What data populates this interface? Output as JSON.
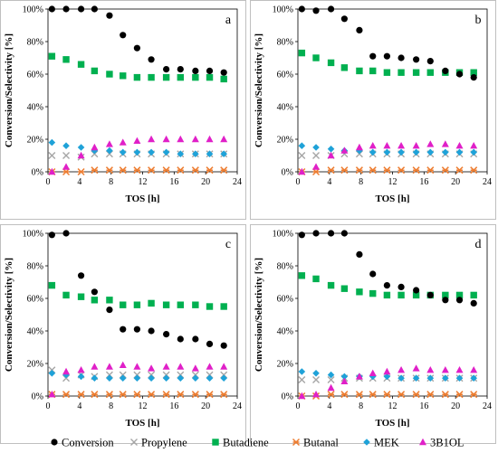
{
  "chart_data": [
    {
      "type": "scatter",
      "panel_label": "a",
      "xlabel": "TOS [h]",
      "ylabel": "Conversion/Selectivity [%]",
      "xlim": [
        0,
        24
      ],
      "ylim": [
        0,
        100
      ],
      "xticks": [
        "0",
        "4",
        "8",
        "12",
        "16",
        "20",
        "24"
      ],
      "yticks": [
        "0%",
        "20%",
        "40%",
        "60%",
        "80%",
        "100%"
      ],
      "series": [
        {
          "name": "Conversion",
          "x": [
            0.5,
            2.3,
            4.2,
            5.9,
            7.8,
            9.5,
            11.3,
            13.1,
            15.0,
            16.8,
            18.7,
            20.5,
            22.3
          ],
          "y": [
            100,
            100,
            100,
            100,
            96,
            84,
            76,
            69,
            63,
            63,
            62,
            62,
            61
          ]
        },
        {
          "name": "Propylene",
          "x": [
            0.5,
            2.3,
            4.2,
            5.9,
            7.8,
            9.5,
            11.3,
            13.1,
            15.0,
            16.8,
            18.7,
            20.5,
            22.3
          ],
          "y": [
            10,
            10,
            9,
            11,
            11,
            11,
            11,
            11,
            11,
            11,
            11,
            11,
            11
          ]
        },
        {
          "name": "Butadiene",
          "x": [
            0.5,
            2.3,
            4.2,
            5.9,
            7.8,
            9.5,
            11.3,
            13.1,
            15.0,
            16.8,
            18.7,
            20.5,
            22.3
          ],
          "y": [
            71,
            69,
            66,
            62,
            60,
            59,
            58,
            58,
            58,
            58,
            58,
            58,
            57
          ]
        },
        {
          "name": "Butanal",
          "x": [
            0.5,
            2.3,
            4.2,
            5.9,
            7.8,
            9.5,
            11.3,
            13.1,
            15.0,
            16.8,
            18.7,
            20.5,
            22.3
          ],
          "y": [
            0,
            0,
            0,
            1,
            1,
            1,
            1,
            1,
            1,
            1,
            1,
            1,
            1
          ]
        },
        {
          "name": "MEK",
          "x": [
            0.5,
            2.3,
            4.2,
            5.9,
            7.8,
            9.5,
            11.3,
            13.1,
            15.0,
            16.8,
            18.7,
            20.5,
            22.3
          ],
          "y": [
            18,
            16,
            15,
            13,
            13,
            12,
            12,
            12,
            12,
            11,
            11,
            11,
            11
          ]
        },
        {
          "name": "3B1OL",
          "x": [
            0.5,
            2.3,
            4.2,
            5.9,
            7.8,
            9.5,
            11.3,
            13.1,
            15.0,
            16.8,
            18.7,
            20.5,
            22.3
          ],
          "y": [
            0,
            3,
            10,
            15,
            17,
            18,
            19,
            20,
            20,
            20,
            20,
            20,
            20
          ]
        }
      ]
    },
    {
      "type": "scatter",
      "panel_label": "b",
      "xlabel": "TOS [h]",
      "ylabel": "Conversion/Selectivity [%]",
      "xlim": [
        0,
        24
      ],
      "ylim": [
        0,
        100
      ],
      "xticks": [
        "0",
        "4",
        "8",
        "12",
        "16",
        "20",
        "24"
      ],
      "yticks": [
        "0%",
        "20%",
        "40%",
        "60%",
        "80%",
        "100%"
      ],
      "series": [
        {
          "name": "Conversion",
          "x": [
            0.5,
            2.3,
            4.2,
            5.9,
            7.8,
            9.5,
            11.3,
            13.1,
            15.0,
            16.8,
            18.7,
            20.5,
            22.3
          ],
          "y": [
            100,
            99,
            100,
            94,
            87,
            71,
            71,
            70,
            69,
            68,
            62,
            60,
            58
          ]
        },
        {
          "name": "Propylene",
          "x": [
            0.5,
            2.3,
            4.2,
            5.9,
            7.8,
            9.5,
            11.3,
            13.1,
            15.0,
            16.8,
            18.7,
            20.5,
            22.3
          ],
          "y": [
            10,
            10,
            10,
            11,
            11,
            11,
            11,
            11,
            11,
            11,
            11,
            11,
            11
          ]
        },
        {
          "name": "Butadiene",
          "x": [
            0.5,
            2.3,
            4.2,
            5.9,
            7.8,
            9.5,
            11.3,
            13.1,
            15.0,
            16.8,
            18.7,
            20.5,
            22.3
          ],
          "y": [
            73,
            70,
            67,
            64,
            62,
            62,
            61,
            61,
            61,
            61,
            61,
            61,
            61
          ]
        },
        {
          "name": "Butanal",
          "x": [
            0.5,
            2.3,
            4.2,
            5.9,
            7.8,
            9.5,
            11.3,
            13.1,
            15.0,
            16.8,
            18.7,
            20.5,
            22.3
          ],
          "y": [
            0,
            0,
            1,
            1,
            1,
            1,
            1,
            1,
            1,
            1,
            1,
            1,
            1
          ]
        },
        {
          "name": "MEK",
          "x": [
            0.5,
            2.3,
            4.2,
            5.9,
            7.8,
            9.5,
            11.3,
            13.1,
            15.0,
            16.8,
            18.7,
            20.5,
            22.3
          ],
          "y": [
            16,
            15,
            14,
            13,
            13,
            12,
            12,
            12,
            12,
            12,
            12,
            12,
            12
          ]
        },
        {
          "name": "3B1OL",
          "x": [
            0.5,
            2.3,
            4.2,
            5.9,
            7.8,
            9.5,
            11.3,
            13.1,
            15.0,
            16.8,
            18.7,
            20.5,
            22.3
          ],
          "y": [
            0,
            3,
            10,
            13,
            15,
            16,
            16,
            16,
            16,
            17,
            17,
            16,
            16
          ]
        }
      ]
    },
    {
      "type": "scatter",
      "panel_label": "c",
      "xlabel": "TOS [h]",
      "ylabel": "Conversion/Selectivity [%]",
      "xlim": [
        0,
        24
      ],
      "ylim": [
        0,
        100
      ],
      "xticks": [
        "0",
        "4",
        "8",
        "12",
        "16",
        "20",
        "24"
      ],
      "yticks": [
        "0%",
        "20%",
        "40%",
        "60%",
        "80%",
        "100%"
      ],
      "series": [
        {
          "name": "Conversion",
          "x": [
            0.5,
            2.3,
            4.2,
            5.9,
            7.8,
            9.5,
            11.3,
            13.1,
            15.0,
            16.8,
            18.7,
            20.5,
            22.3
          ],
          "y": [
            99,
            100,
            74,
            64,
            53,
            41,
            41,
            40,
            38,
            35,
            35,
            32,
            31
          ]
        },
        {
          "name": "Propylene",
          "x": [
            0.5,
            2.3,
            4.2,
            5.9,
            7.8,
            9.5,
            11.3,
            13.1,
            15.0,
            16.8,
            18.7,
            20.5,
            22.3
          ],
          "y": [
            16,
            11,
            13,
            12,
            13,
            13,
            13,
            13,
            13,
            13,
            13,
            13,
            13
          ]
        },
        {
          "name": "Butadiene",
          "x": [
            0.5,
            2.3,
            4.2,
            5.9,
            7.8,
            9.5,
            11.3,
            13.1,
            15.0,
            16.8,
            18.7,
            20.5,
            22.3
          ],
          "y": [
            68,
            62,
            61,
            59,
            59,
            56,
            56,
            57,
            56,
            56,
            56,
            55,
            55
          ]
        },
        {
          "name": "Butanal",
          "x": [
            0.5,
            2.3,
            4.2,
            5.9,
            7.8,
            9.5,
            11.3,
            13.1,
            15.0,
            16.8,
            18.7,
            20.5,
            22.3
          ],
          "y": [
            1,
            1,
            1,
            1,
            1,
            1,
            1,
            1,
            1,
            1,
            1,
            1,
            1
          ]
        },
        {
          "name": "MEK",
          "x": [
            0.5,
            2.3,
            4.2,
            5.9,
            7.8,
            9.5,
            11.3,
            13.1,
            15.0,
            16.8,
            18.7,
            20.5,
            22.3
          ],
          "y": [
            14,
            13,
            12,
            11,
            11,
            11,
            11,
            11,
            11,
            11,
            11,
            11,
            11
          ]
        },
        {
          "name": "3B1OL",
          "x": [
            0.5,
            2.3,
            4.2,
            5.9,
            7.8,
            9.5,
            11.3,
            13.1,
            15.0,
            16.8,
            18.7,
            20.5,
            22.3
          ],
          "y": [
            1,
            15,
            16,
            18,
            18,
            19,
            18,
            17,
            18,
            18,
            17,
            18,
            18
          ]
        }
      ]
    },
    {
      "type": "scatter",
      "panel_label": "d",
      "xlabel": "TOS [h]",
      "ylabel": "Conversion/Selectivity [%]",
      "xlim": [
        0,
        24
      ],
      "ylim": [
        0,
        100
      ],
      "xticks": [
        "0",
        "4",
        "8",
        "12",
        "16",
        "20",
        "24"
      ],
      "yticks": [
        "0%",
        "20%",
        "40%",
        "60%",
        "80%",
        "100%"
      ],
      "series": [
        {
          "name": "Conversion",
          "x": [
            0.5,
            2.3,
            4.2,
            5.9,
            7.8,
            9.5,
            11.3,
            13.1,
            15.0,
            16.8,
            18.7,
            20.5,
            22.3
          ],
          "y": [
            99,
            100,
            100,
            100,
            87,
            75,
            68,
            67,
            65,
            62,
            59,
            59,
            57
          ]
        },
        {
          "name": "Propylene",
          "x": [
            0.5,
            2.3,
            4.2,
            5.9,
            7.8,
            9.5,
            11.3,
            13.1,
            15.0,
            16.8,
            18.7,
            20.5,
            22.3
          ],
          "y": [
            10,
            10,
            10,
            11,
            11,
            11,
            11,
            11,
            11,
            11,
            11,
            11,
            11
          ]
        },
        {
          "name": "Butadiene",
          "x": [
            0.5,
            2.3,
            4.2,
            5.9,
            7.8,
            9.5,
            11.3,
            13.1,
            15.0,
            16.8,
            18.7,
            20.5,
            22.3
          ],
          "y": [
            74,
            72,
            68,
            66,
            64,
            63,
            62,
            62,
            62,
            62,
            62,
            62,
            62
          ]
        },
        {
          "name": "Butanal",
          "x": [
            0.5,
            2.3,
            4.2,
            5.9,
            7.8,
            9.5,
            11.3,
            13.1,
            15.0,
            16.8,
            18.7,
            20.5,
            22.3
          ],
          "y": [
            0,
            0,
            1,
            1,
            1,
            1,
            1,
            1,
            1,
            1,
            1,
            1,
            1
          ]
        },
        {
          "name": "MEK",
          "x": [
            0.5,
            2.3,
            4.2,
            5.9,
            7.8,
            9.5,
            11.3,
            13.1,
            15.0,
            16.8,
            18.7,
            20.5,
            22.3
          ],
          "y": [
            15,
            14,
            13,
            12,
            12,
            12,
            12,
            11,
            11,
            11,
            11,
            11,
            11
          ]
        },
        {
          "name": "3B1OL",
          "x": [
            0.5,
            2.3,
            4.2,
            5.9,
            7.8,
            9.5,
            11.3,
            13.1,
            15.0,
            16.8,
            18.7,
            20.5,
            22.3
          ],
          "y": [
            0,
            1,
            5,
            9,
            12,
            14,
            15,
            16,
            17,
            16,
            16,
            16,
            16
          ]
        }
      ]
    }
  ],
  "legend": {
    "placement": "bottom",
    "items": [
      {
        "name": "Conversion",
        "marker": "circle",
        "color": "#000000"
      },
      {
        "name": "Propylene",
        "marker": "x",
        "color": "#a6a6a6"
      },
      {
        "name": "Butadiene",
        "marker": "square",
        "color": "#00b050"
      },
      {
        "name": "Butanal",
        "marker": "asterisk",
        "color": "#ed7d31"
      },
      {
        "name": "MEK",
        "marker": "diamond",
        "color": "#1fa2d8"
      },
      {
        "name": "3B1OL",
        "marker": "triangle",
        "color": "#e020c8"
      }
    ]
  }
}
